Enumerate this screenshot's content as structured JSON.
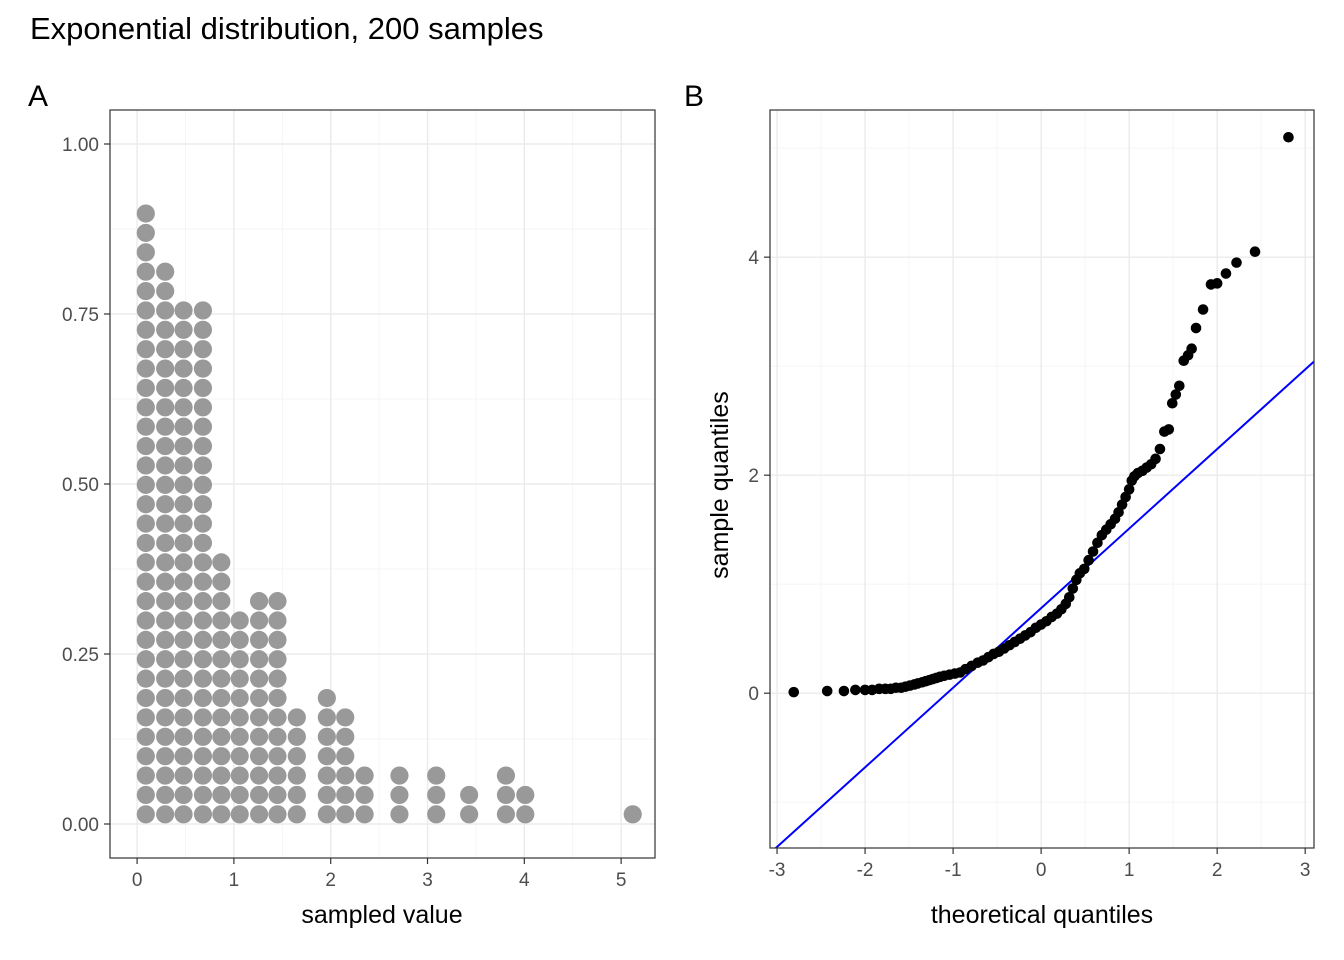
{
  "figure": {
    "title": "Exponential distribution, 200 samples"
  },
  "colors": {
    "dot_fill": "#999999",
    "qq_point": "#000000",
    "qq_line": "#0000ff",
    "grid": "#ebebeb",
    "panel_border": "#333333",
    "tick_text": "#4d4d4d"
  },
  "chart_data": [
    {
      "tag": "A",
      "type": "dotplot",
      "xlabel": "sampled value",
      "ylabel": "",
      "xlim": [
        -0.28,
        5.35
      ],
      "ylim": [
        -0.05,
        1.05
      ],
      "xticks": [
        0,
        1,
        2,
        3,
        4,
        5
      ],
      "xtick_labels": [
        "0",
        "1",
        "2",
        "3",
        "4",
        "5"
      ],
      "yticks": [
        0,
        0.25,
        0.5,
        0.75,
        1
      ],
      "ytick_labels": [
        "0.00",
        "0.25",
        "0.50",
        "0.75",
        "1.00"
      ],
      "dot_height_units": 0.0285,
      "bins": [
        {
          "x": 0.09,
          "count": 32
        },
        {
          "x": 0.29,
          "count": 29
        },
        {
          "x": 0.48,
          "count": 27
        },
        {
          "x": 0.68,
          "count": 27
        },
        {
          "x": 0.87,
          "count": 14
        },
        {
          "x": 1.06,
          "count": 11
        },
        {
          "x": 1.26,
          "count": 12
        },
        {
          "x": 1.45,
          "count": 12
        },
        {
          "x": 1.65,
          "count": 6
        },
        {
          "x": 1.96,
          "count": 7
        },
        {
          "x": 2.15,
          "count": 6
        },
        {
          "x": 2.35,
          "count": 3
        },
        {
          "x": 2.71,
          "count": 3
        },
        {
          "x": 3.09,
          "count": 3
        },
        {
          "x": 3.43,
          "count": 2
        },
        {
          "x": 3.81,
          "count": 3
        },
        {
          "x": 4.01,
          "count": 2
        },
        {
          "x": 5.12,
          "count": 1
        }
      ]
    },
    {
      "tag": "B",
      "type": "scatter",
      "xlabel": "theoretical quantiles",
      "ylabel": "sample quantiles",
      "xlim": [
        -3.08,
        3.1
      ],
      "ylim": [
        -1.42,
        5.35
      ],
      "xticks": [
        -3,
        -2,
        -1,
        0,
        1,
        2,
        3
      ],
      "xtick_labels": [
        "-3",
        "-2",
        "-1",
        "0",
        "1",
        "2",
        "3"
      ],
      "yticks": [
        0,
        2,
        4
      ],
      "ytick_labels": [
        "0",
        "2",
        "4"
      ],
      "reference_line": {
        "intercept": 0.78,
        "slope": 0.73
      },
      "points": [
        [
          -2.81,
          0.01
        ],
        [
          -2.43,
          0.02
        ],
        [
          -2.24,
          0.02
        ],
        [
          -2.11,
          0.03
        ],
        [
          -2.0,
          0.03
        ],
        [
          -1.92,
          0.03
        ],
        [
          -1.84,
          0.04
        ],
        [
          -1.77,
          0.04
        ],
        [
          -1.71,
          0.04
        ],
        [
          -1.65,
          0.05
        ],
        [
          -1.59,
          0.05
        ],
        [
          -1.54,
          0.06
        ],
        [
          -1.49,
          0.07
        ],
        [
          -1.44,
          0.08
        ],
        [
          -1.4,
          0.09
        ],
        [
          -1.35,
          0.1
        ],
        [
          -1.31,
          0.11
        ],
        [
          -1.27,
          0.12
        ],
        [
          -1.23,
          0.13
        ],
        [
          -1.19,
          0.14
        ],
        [
          -1.15,
          0.15
        ],
        [
          -1.1,
          0.16
        ],
        [
          -1.04,
          0.17
        ],
        [
          -0.98,
          0.18
        ],
        [
          -0.92,
          0.19
        ],
        [
          -0.86,
          0.22
        ],
        [
          -0.79,
          0.25
        ],
        [
          -0.72,
          0.28
        ],
        [
          -0.66,
          0.3
        ],
        [
          -0.6,
          0.33
        ],
        [
          -0.54,
          0.36
        ],
        [
          -0.48,
          0.38
        ],
        [
          -0.42,
          0.41
        ],
        [
          -0.36,
          0.44
        ],
        [
          -0.3,
          0.47
        ],
        [
          -0.24,
          0.5
        ],
        [
          -0.18,
          0.53
        ],
        [
          -0.12,
          0.56
        ],
        [
          -0.06,
          0.6
        ],
        [
          0.0,
          0.63
        ],
        [
          0.06,
          0.66
        ],
        [
          0.12,
          0.7
        ],
        [
          0.18,
          0.73
        ],
        [
          0.23,
          0.77
        ],
        [
          0.28,
          0.82
        ],
        [
          0.32,
          0.88
        ],
        [
          0.36,
          0.96
        ],
        [
          0.4,
          1.04
        ],
        [
          0.44,
          1.1
        ],
        [
          0.49,
          1.14
        ],
        [
          0.54,
          1.22
        ],
        [
          0.59,
          1.3
        ],
        [
          0.64,
          1.38
        ],
        [
          0.69,
          1.45
        ],
        [
          0.74,
          1.5
        ],
        [
          0.79,
          1.55
        ],
        [
          0.84,
          1.6
        ],
        [
          0.88,
          1.66
        ],
        [
          0.92,
          1.73
        ],
        [
          0.96,
          1.8
        ],
        [
          1.0,
          1.87
        ],
        [
          1.03,
          1.95
        ],
        [
          1.06,
          1.99
        ],
        [
          1.1,
          2.02
        ],
        [
          1.15,
          2.04
        ],
        [
          1.2,
          2.07
        ],
        [
          1.25,
          2.1
        ],
        [
          1.3,
          2.15
        ],
        [
          1.35,
          2.24
        ],
        [
          1.4,
          2.4
        ],
        [
          1.45,
          2.42
        ],
        [
          1.49,
          2.66
        ],
        [
          1.53,
          2.74
        ],
        [
          1.57,
          2.82
        ],
        [
          1.62,
          3.05
        ],
        [
          1.67,
          3.1
        ],
        [
          1.71,
          3.16
        ],
        [
          1.76,
          3.35
        ],
        [
          1.84,
          3.52
        ],
        [
          1.93,
          3.75
        ],
        [
          2.0,
          3.76
        ],
        [
          2.1,
          3.85
        ],
        [
          2.22,
          3.95
        ],
        [
          2.43,
          4.05
        ],
        [
          2.81,
          5.1
        ]
      ]
    }
  ]
}
